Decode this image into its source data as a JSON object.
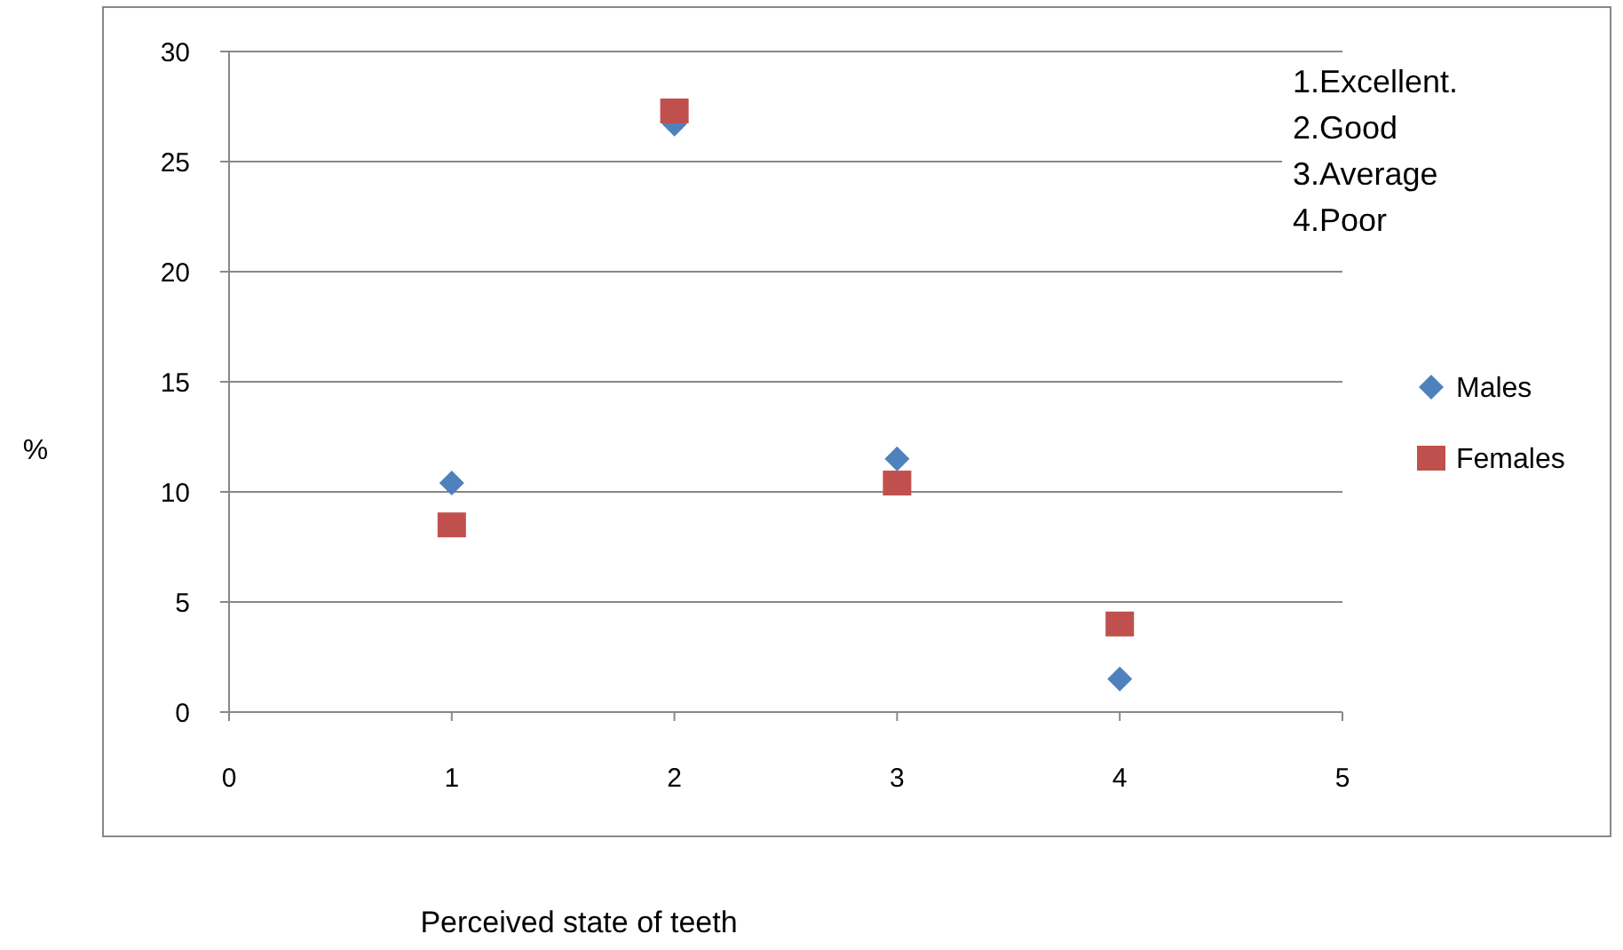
{
  "chart_data": {
    "type": "scatter",
    "xlabel": "Perceived state of teeth",
    "ylabel": "%",
    "x": [
      1,
      2,
      3,
      4
    ],
    "series": [
      {
        "name": "Males",
        "color": "#4f81bd",
        "marker": "diamond",
        "values": [
          10.4,
          26.7,
          11.5,
          1.5
        ]
      },
      {
        "name": "Females",
        "color": "#c0504d",
        "marker": "square",
        "values": [
          8.5,
          27.3,
          10.4,
          4.0
        ]
      }
    ],
    "xlim": [
      0,
      5
    ],
    "xticks": [
      0,
      1,
      2,
      3,
      4,
      5
    ],
    "ylim": [
      0,
      30
    ],
    "yticks": [
      0,
      5,
      10,
      15,
      20,
      25,
      30
    ],
    "grid": "y",
    "legend": "right",
    "annotations": [
      "1.Excellent.",
      "2.Good",
      "3.Average",
      "4.Poor"
    ]
  }
}
